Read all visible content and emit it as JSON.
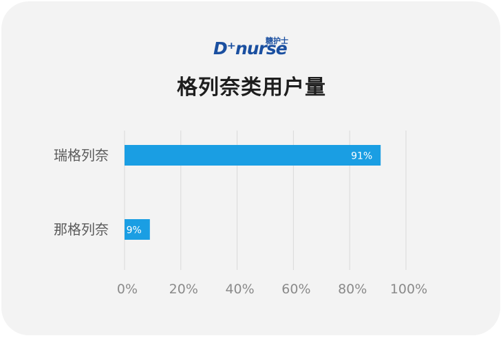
{
  "brand": {
    "logo_text": "D⁺nurse",
    "logo_cn": "糖护士"
  },
  "chart_data": {
    "type": "bar",
    "orientation": "horizontal",
    "title": "格列奈类用户量",
    "categories": [
      "瑞格列奈",
      "那格列奈"
    ],
    "values": [
      91,
      9
    ],
    "value_labels": [
      "91%",
      "9%"
    ],
    "xlim": [
      0,
      100
    ],
    "xticks": [
      "0%",
      "20%",
      "40%",
      "60%",
      "80%",
      "100%"
    ],
    "grid": true,
    "bar_color": "#1a9ee3",
    "grid_color": "#d9d9d9",
    "tick_color": "#8a8a8a",
    "category_color": "#5a5a5a"
  }
}
